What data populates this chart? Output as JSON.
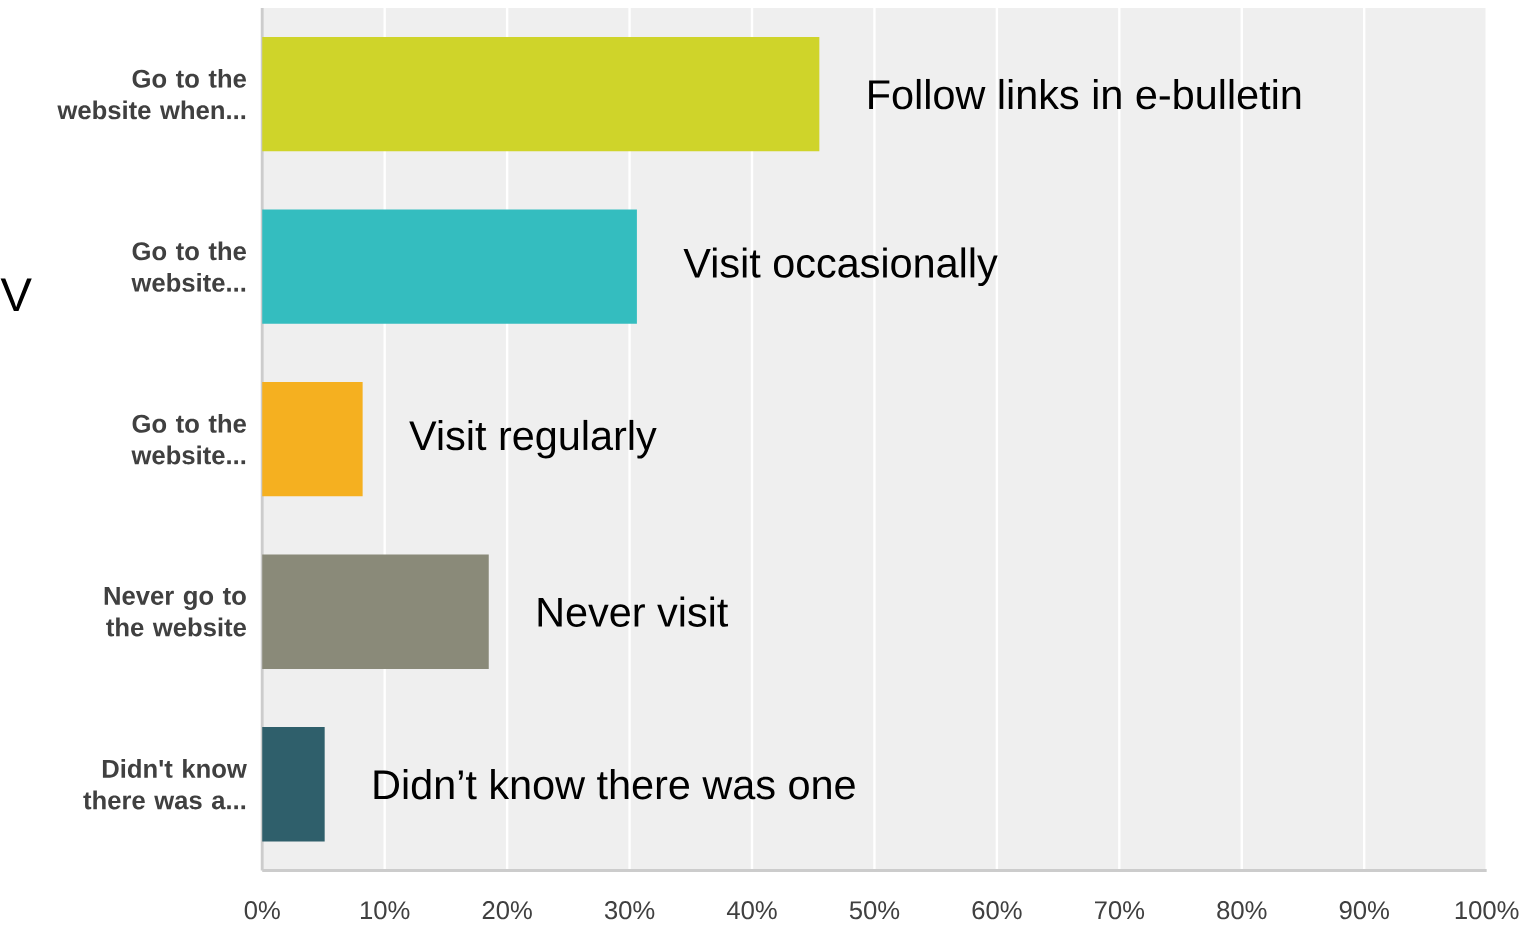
{
  "chart_data": {
    "type": "bar",
    "orientation": "horizontal",
    "categories": [
      "Go to the website when...",
      "Go to the website...",
      "Go to the website...",
      "Never go to the website",
      "Didn't know there was a..."
    ],
    "values": [
      45.5,
      30.6,
      8.2,
      18.5,
      5.1
    ],
    "colors": [
      "#cfd42a",
      "#34bdbf",
      "#f5b020",
      "#8a8a79",
      "#2f5f6b"
    ],
    "xlim": [
      0,
      100
    ],
    "xticks": [
      {
        "value": 0,
        "label": "0%"
      },
      {
        "value": 10,
        "label": "10%"
      },
      {
        "value": 20,
        "label": "20%"
      },
      {
        "value": 30,
        "label": "30%"
      },
      {
        "value": 40,
        "label": "40%"
      },
      {
        "value": 50,
        "label": "50%"
      },
      {
        "value": 60,
        "label": "60%"
      },
      {
        "value": 70,
        "label": "70%"
      },
      {
        "value": 80,
        "label": "80%"
      },
      {
        "value": 90,
        "label": "90%"
      },
      {
        "value": 100,
        "label": "100%"
      }
    ],
    "grid": "x",
    "annotations": [
      {
        "text": "Follow links in e-bulletin",
        "x": 45.5
      },
      {
        "text": "Visit occasionally",
        "x": 30.6
      },
      {
        "text": "Visit regularly",
        "x": 8.2
      },
      {
        "text": "Never visit",
        "x": 18.5
      },
      {
        "text": "Didn’t know there was one",
        "x": 5.1
      },
      "V"
    ]
  }
}
